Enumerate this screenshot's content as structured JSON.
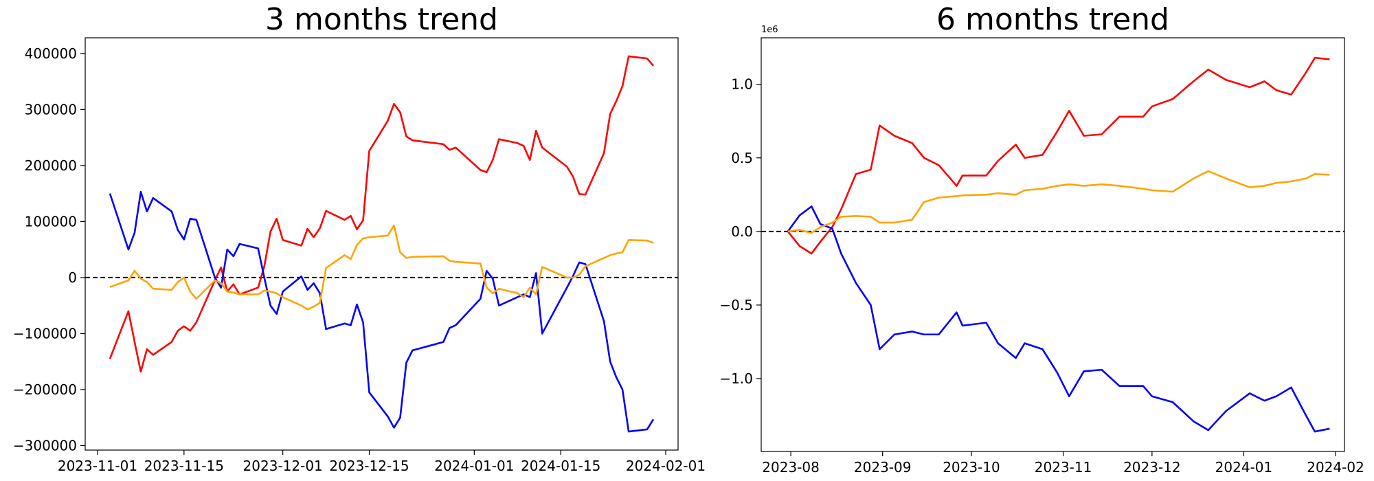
{
  "chart_data": [
    {
      "type": "line",
      "title": "3 months trend",
      "x": [
        "2023-11-03",
        "2023-11-06",
        "2023-11-07",
        "2023-11-08",
        "2023-11-09",
        "2023-11-10",
        "2023-11-13",
        "2023-11-14",
        "2023-11-15",
        "2023-11-16",
        "2023-11-17",
        "2023-11-20",
        "2023-11-21",
        "2023-11-22",
        "2023-11-23",
        "2023-11-24",
        "2023-11-27",
        "2023-11-28",
        "2023-11-29",
        "2023-11-30",
        "2023-12-01",
        "2023-12-04",
        "2023-12-05",
        "2023-12-06",
        "2023-12-07",
        "2023-12-08",
        "2023-12-11",
        "2023-12-12",
        "2023-12-13",
        "2023-12-14",
        "2023-12-15",
        "2023-12-18",
        "2023-12-19",
        "2023-12-20",
        "2023-12-21",
        "2023-12-22",
        "2023-12-27",
        "2023-12-28",
        "2023-12-29",
        "2024-01-02",
        "2024-01-03",
        "2024-01-04",
        "2024-01-05",
        "2024-01-08",
        "2024-01-09",
        "2024-01-10",
        "2024-01-11",
        "2024-01-12",
        "2024-01-16",
        "2024-01-17",
        "2024-01-18",
        "2024-01-19",
        "2024-01-22",
        "2024-01-23",
        "2024-01-24",
        "2024-01-25",
        "2024-01-26",
        "2024-01-29",
        "2024-01-30"
      ],
      "series": [
        {
          "color": "#ff0000",
          "values": [
            -145000,
            -60000,
            -115000,
            -168000,
            -128000,
            -138000,
            -115000,
            -95000,
            -87000,
            -95000,
            -80000,
            -5000,
            18000,
            -25000,
            -12000,
            -30000,
            -18000,
            20000,
            82000,
            105000,
            67000,
            57000,
            87000,
            72000,
            88000,
            119000,
            103000,
            110000,
            86000,
            102000,
            226000,
            280000,
            310000,
            295000,
            252000,
            245000,
            238000,
            228000,
            232000,
            192000,
            188000,
            210000,
            247000,
            240000,
            235000,
            210000,
            262000,
            232000,
            198000,
            180000,
            149000,
            148000,
            222000,
            292000,
            315000,
            342000,
            395000,
            391000,
            378000
          ]
        },
        {
          "color": "#0000ff",
          "values": [
            150000,
            50000,
            80000,
            153000,
            118000,
            142000,
            118000,
            85000,
            68000,
            105000,
            103000,
            0,
            -18000,
            50000,
            38000,
            60000,
            52000,
            0,
            -50000,
            -65000,
            -25000,
            2000,
            -22000,
            -10000,
            -28000,
            -92000,
            -82000,
            -85000,
            -48000,
            -80000,
            -205000,
            -248000,
            -268000,
            -250000,
            -152000,
            -130000,
            -115000,
            -90000,
            -85000,
            -38000,
            12000,
            -2000,
            -50000,
            -35000,
            -30000,
            -35000,
            8000,
            -100000,
            -18000,
            3000,
            27000,
            24000,
            -78000,
            -150000,
            -178000,
            -200000,
            -275000,
            -271000,
            -253000
          ]
        },
        {
          "color": "#ffa500",
          "values": [
            -17000,
            -5000,
            12000,
            -2000,
            -8000,
            -20000,
            -22000,
            -8000,
            0,
            -25000,
            -38000,
            -5000,
            -10000,
            -25000,
            -27000,
            -30000,
            -30000,
            -23000,
            -25000,
            -28000,
            -35000,
            -50000,
            -57000,
            -52000,
            -45000,
            17000,
            40000,
            33000,
            58000,
            70000,
            72000,
            75000,
            93000,
            45000,
            35000,
            37000,
            38000,
            30000,
            28000,
            25000,
            -18000,
            -28000,
            -20000,
            -28000,
            -35000,
            -18000,
            -30000,
            19000,
            0,
            0,
            5000,
            20000,
            35000,
            40000,
            43000,
            45000,
            67000,
            66000,
            62000
          ]
        }
      ],
      "xlim": [
        "2023-10-30",
        "2024-02-03"
      ],
      "xticks": [
        "2023-11-01",
        "2023-11-15",
        "2023-12-01",
        "2023-12-15",
        "2024-01-01",
        "2024-01-15",
        "2024-02-01"
      ],
      "ylim": [
        -308000,
        428000
      ],
      "yticks": [
        {
          "value": -300000,
          "label": "−300000"
        },
        {
          "value": -200000,
          "label": "−200000"
        },
        {
          "value": -100000,
          "label": "−100000"
        },
        0,
        100000,
        200000,
        300000,
        400000
      ],
      "hline": 0
    },
    {
      "type": "line",
      "title": "6 months trend",
      "y_offset_label": "1e6",
      "x": [
        "2023-07-31",
        "2023-08-04",
        "2023-08-08",
        "2023-08-11",
        "2023-08-15",
        "2023-08-18",
        "2023-08-23",
        "2023-08-28",
        "2023-08-31",
        "2023-09-05",
        "2023-09-11",
        "2023-09-15",
        "2023-09-20",
        "2023-09-26",
        "2023-09-28",
        "2023-10-06",
        "2023-10-10",
        "2023-10-16",
        "2023-10-19",
        "2023-10-25",
        "2023-10-30",
        "2023-11-03",
        "2023-11-08",
        "2023-11-14",
        "2023-11-20",
        "2023-11-28",
        "2023-12-01",
        "2023-12-08",
        "2023-12-15",
        "2023-12-20",
        "2023-12-26",
        "2024-01-03",
        "2024-01-08",
        "2024-01-12",
        "2024-01-17",
        "2024-01-22",
        "2024-01-25",
        "2024-01-30"
      ],
      "series": [
        {
          "color": "#ff0000",
          "values": [
            0,
            -100000,
            -150000,
            -70000,
            30000,
            150000,
            390000,
            420000,
            720000,
            650000,
            600000,
            500000,
            450000,
            310000,
            380000,
            380000,
            480000,
            590000,
            500000,
            520000,
            680000,
            820000,
            650000,
            660000,
            780000,
            780000,
            850000,
            900000,
            1020000,
            1100000,
            1030000,
            980000,
            1020000,
            960000,
            930000,
            1080000,
            1180000,
            1170000
          ]
        },
        {
          "color": "#0000ff",
          "values": [
            0,
            110000,
            170000,
            50000,
            20000,
            -150000,
            -350000,
            -500000,
            -800000,
            -700000,
            -680000,
            -700000,
            -700000,
            -550000,
            -640000,
            -620000,
            -760000,
            -860000,
            -760000,
            -800000,
            -960000,
            -1120000,
            -950000,
            -940000,
            -1050000,
            -1050000,
            -1120000,
            -1160000,
            -1290000,
            -1350000,
            -1220000,
            -1100000,
            -1150000,
            -1120000,
            -1060000,
            -1250000,
            -1360000,
            -1340000
          ]
        },
        {
          "color": "#ffa500",
          "values": [
            0,
            10000,
            -10000,
            30000,
            60000,
            100000,
            105000,
            100000,
            60000,
            60000,
            80000,
            200000,
            230000,
            240000,
            245000,
            250000,
            260000,
            250000,
            280000,
            290000,
            310000,
            320000,
            310000,
            320000,
            310000,
            290000,
            280000,
            270000,
            360000,
            410000,
            360000,
            300000,
            310000,
            330000,
            340000,
            360000,
            390000,
            385000
          ]
        }
      ],
      "xlim": [
        "2023-07-22",
        "2024-02-04"
      ],
      "xticks": [
        {
          "value": "2023-08-01",
          "label": "2023-08"
        },
        {
          "value": "2023-09-01",
          "label": "2023-09"
        },
        {
          "value": "2023-10-01",
          "label": "2023-10"
        },
        {
          "value": "2023-11-01",
          "label": "2023-11"
        },
        {
          "value": "2023-12-01",
          "label": "2023-12"
        },
        {
          "value": "2024-01-01",
          "label": "2024-01"
        },
        {
          "value": "2024-02-01",
          "label": "2024-02"
        }
      ],
      "ylim": [
        -1495000,
        1316000
      ],
      "yticks": [
        {
          "value": -1000000,
          "label": "−1.0"
        },
        {
          "value": -500000,
          "label": "−0.5"
        },
        {
          "value": 0,
          "label": "0.0"
        },
        {
          "value": 500000,
          "label": "0.5"
        },
        {
          "value": 1000000,
          "label": "1.0"
        }
      ],
      "hline": 0
    }
  ]
}
